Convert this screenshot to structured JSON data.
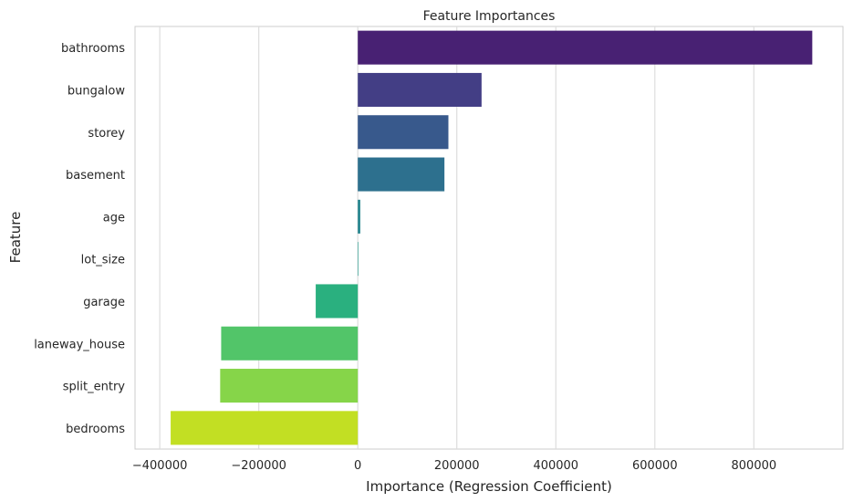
{
  "chart_data": {
    "type": "bar",
    "orientation": "horizontal",
    "title": "Feature Importances",
    "xlabel": "Importance (Regression Coefficient)",
    "ylabel": "Feature",
    "xlim": [
      -450000,
      980000
    ],
    "xticks": [
      -400000,
      -200000,
      0,
      200000,
      400000,
      600000,
      800000
    ],
    "xtick_labels": [
      "−400000",
      "−200000",
      "0",
      "200000",
      "400000",
      "600000",
      "800000"
    ],
    "grid": true,
    "categories": [
      "bathrooms",
      "bungalow",
      "storey",
      "basement",
      "age",
      "lot_size",
      "garage",
      "laneway_house",
      "split_entry",
      "bedrooms"
    ],
    "values": [
      918000,
      250000,
      183000,
      175000,
      5000,
      700,
      -85000,
      -276000,
      -278000,
      -378000
    ],
    "colors": [
      "#482173",
      "#433e85",
      "#38598c",
      "#2d708e",
      "#25858e",
      "#1e9b8a",
      "#2ab07f",
      "#52c569",
      "#86d549",
      "#c2df23"
    ]
  }
}
